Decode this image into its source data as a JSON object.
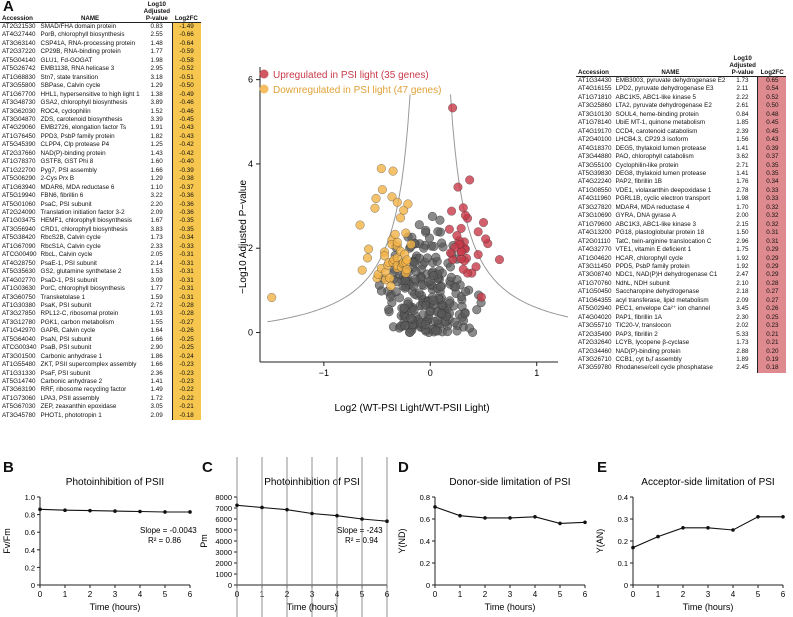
{
  "panel_labels": {
    "a": "A",
    "b": "B",
    "c": "C",
    "d": "D",
    "e": "E"
  },
  "left_table": {
    "headers": {
      "accession": "Accession",
      "name": "NAME",
      "pvalue_l1": "Log10",
      "pvalue_l2": "Adjusted",
      "pvalue_l3": "P-value",
      "fc": "Log2FC"
    },
    "fc_color": "#f6c64e",
    "rows": [
      [
        "AT2G21530",
        "SMAD/FHA domain protein",
        "0.83",
        "-1.49"
      ],
      [
        "AT4G27440",
        "PorB, chlorophyll biosynthesis",
        "2.55",
        "-0.66"
      ],
      [
        "AT3G63140",
        "CSP41A, RNA-processing protein",
        "1.48",
        "-0.64"
      ],
      [
        "AT2G37220",
        "CP29B, RNA-binding protein",
        "1.77",
        "-0.59"
      ],
      [
        "AT5G04140",
        "GLU1, Fd-GOGAT",
        "1.98",
        "-0.58"
      ],
      [
        "AT5G26742",
        "EMB1138, RNA helicase 3",
        "2.95",
        "-0.52"
      ],
      [
        "AT1G68830",
        "Stn7, state transition",
        "3.18",
        "-0.51"
      ],
      [
        "AT3G55800",
        "SBPase, Calvin cycle",
        "1.29",
        "-0.50"
      ],
      [
        "AT1G67700",
        "HHL1, hypersensitive to high light 1",
        "1.38",
        "-0.49"
      ],
      [
        "AT3G48730",
        "GSA2, chlorophyll biosynthesis",
        "3.89",
        "-0.46"
      ],
      [
        "AT3G62030",
        "ROC4, cyclophilin",
        "1.52",
        "-0.46"
      ],
      [
        "AT3G04870",
        "ZDS, carotenoid biosynthesis",
        "3.39",
        "-0.45"
      ],
      [
        "AT4G29060",
        "EMB2726, elongation factor Ts",
        "1.91",
        "-0.43"
      ],
      [
        "AT1G76450",
        "PPD3, PsbP family protein",
        "1.82",
        "-0.43"
      ],
      [
        "AT5G45390",
        "CLPP4, Clp protease P4",
        "1.25",
        "-0.42"
      ],
      [
        "AT2G37660",
        "NAD(P)-binding protein",
        "1.43",
        "-0.42"
      ],
      [
        "AT1G78370",
        "GSTF8, GST Phi 8",
        "1.60",
        "-0.40"
      ],
      [
        "AT1G22700",
        "Pyg7, PSI assembly",
        "1.66",
        "-0.39"
      ],
      [
        "AT5G06290",
        "2-Cys Prx B",
        "1.29",
        "-0.38"
      ],
      [
        "AT1G63940",
        "MDAR6, MDA reductase 6",
        "1.10",
        "-0.37"
      ],
      [
        "AT5G19940",
        "FBN6, fibrillin 6",
        "3.22",
        "-0.36"
      ],
      [
        "AT5G01060",
        "PsaC, PSI subunit",
        "2.20",
        "-0.36"
      ],
      [
        "AT2G24090",
        "Translation initiation factor 3-2",
        "2.09",
        "-0.36"
      ],
      [
        "AT1G03475",
        "HEMF1, chlorophyll biosynthesis",
        "1.67",
        "-0.35"
      ],
      [
        "AT3G56940",
        "CRD1, chlorophyll biosynthesis",
        "3.83",
        "-0.35"
      ],
      [
        "AT5G38420",
        "RbcS2B, Calvin cycle",
        "1.73",
        "-0.34"
      ],
      [
        "AT1G67090",
        "RbcS1A, Calvin cycle",
        "2.33",
        "-0.33"
      ],
      [
        "ATCG00490",
        "RbcL, Calvin cycle",
        "2.05",
        "-0.31"
      ],
      [
        "AT4G28750",
        "PsaE-1, PSI subunit",
        "2.14",
        "-0.31"
      ],
      [
        "AT5G35630",
        "GS2, glutamine synthetase 2",
        "1.53",
        "-0.31"
      ],
      [
        "AT4G02770",
        "PsaD-1, PSI subunit",
        "3.09",
        "-0.31"
      ],
      [
        "AT1G03630",
        "PorC, chlorophyll biosynthesis",
        "1.77",
        "-0.31"
      ],
      [
        "AT3G60750",
        "Transketolase 1",
        "1.59",
        "-0.31"
      ],
      [
        "AT1G30380",
        "PsaK, PSI subunit",
        "2.72",
        "-0.28"
      ],
      [
        "AT3G27850",
        "RPL12-C, ribosomal protein",
        "1.93",
        "-0.28"
      ],
      [
        "AT3G12780",
        "PGK1, carbon metabolism",
        "1.55",
        "-0.27"
      ],
      [
        "AT1G42970",
        "GAPB, Calvin cycle",
        "1.64",
        "-0.26"
      ],
      [
        "AT5G64040",
        "PsaN, PSI subunit",
        "1.66",
        "-0.25"
      ],
      [
        "ATCG00340",
        "PsaB, PSI subunit",
        "2.90",
        "-0.25"
      ],
      [
        "AT3G01500",
        "Carbonic anhydrase 1",
        "1.86",
        "-0.24"
      ],
      [
        "AT1G55480",
        "ZKT, PSII supercomplex assembly",
        "1.66",
        "-0.23"
      ],
      [
        "AT1G31330",
        "PsaF, PSI subunit",
        "2.36",
        "-0.23"
      ],
      [
        "AT5G14740",
        "Carbonic anhydrase 2",
        "1.41",
        "-0.23"
      ],
      [
        "AT3G63190",
        "RRF, ribosome recycling factor",
        "1.49",
        "-0.22"
      ],
      [
        "AT1G73060",
        "LPA3, PSII assembly",
        "1.72",
        "-0.22"
      ],
      [
        "AT5G67030",
        "ZEP, zeaxanthin epoxidase",
        "3.05",
        "-0.21"
      ],
      [
        "AT3G45780",
        "PHOT1, phototropin 1",
        "2.09",
        "-0.18"
      ]
    ]
  },
  "right_table": {
    "headers": {
      "accession": "Accession",
      "name": "NAME",
      "pvalue_l1": "Log10",
      "pvalue_l2": "Adjusted",
      "pvalue_l3": "P-value",
      "fc": "Log2FC"
    },
    "fc_color": "#de8a8f",
    "rows": [
      [
        "AT1G34430",
        "EMB3003, pyruvate dehydrogenase E2",
        "1.73",
        "0.65"
      ],
      [
        "AT4G16155",
        "LPD2, pyruvate dehydrogenase E3",
        "2.11",
        "0.54"
      ],
      [
        "AT1G71810",
        "ABC1K5, ABC1-like kinase 5",
        "2.22",
        "0.52"
      ],
      [
        "AT3G25860",
        "LTA2, pyruvate dehydrogenase E2",
        "2.61",
        "0.50"
      ],
      [
        "AT3G10130",
        "SOUL4, heme-binding protein",
        "0.84",
        "0.48"
      ],
      [
        "AT1G78140",
        "UbiE MT-1, quinone metabolism",
        "1.85",
        "0.45"
      ],
      [
        "AT4G19170",
        "CCD4, carotenoid catabolism",
        "2.39",
        "0.45"
      ],
      [
        "AT2G40100",
        "LHCB4.3, CP29.3 isoform",
        "1.56",
        "0.43"
      ],
      [
        "AT4G18370",
        "DEG5, thylakoid lumen protease",
        "1.41",
        "0.39"
      ],
      [
        "AT3G44880",
        "PAO, chlorophyll catabolism",
        "3.62",
        "0.37"
      ],
      [
        "AT3G55100",
        "Cyclophilin-like protein",
        "2.71",
        "0.35"
      ],
      [
        "AT5G39830",
        "DEG8, thylakoid lumen protease",
        "1.41",
        "0.35"
      ],
      [
        "AT4G22240",
        "PAP2, fibrillin 1B",
        "1.76",
        "0.34"
      ],
      [
        "AT1G08550",
        "VDE1, violaxanthin deepoxidase 1",
        "2.78",
        "0.33"
      ],
      [
        "AT4G11960",
        "PGRL1B, cyclic electron transport",
        "1.98",
        "0.33"
      ],
      [
        "AT3G27820",
        "MDAR4, MDA reductase 4",
        "1.70",
        "0.32"
      ],
      [
        "AT3G10690",
        "GYRA, DNA gyrase A",
        "2.00",
        "0.32"
      ],
      [
        "AT1G79600",
        "ABC1K3, ABC1-like kinase 3",
        "2.15",
        "0.32"
      ],
      [
        "AT4G13200",
        "PG18, plastoglobular protein 18",
        "1.50",
        "0.31"
      ],
      [
        "AT2G01110",
        "TatC, twin-arginine translocation C",
        "2.96",
        "0.31"
      ],
      [
        "AT4G32770",
        "VTE1, vitamin E deficient 1",
        "1.75",
        "0.29"
      ],
      [
        "AT1G04620",
        "HCAR, chlorophyll cycle",
        "1.92",
        "0.29"
      ],
      [
        "AT3G11450",
        "PPD5, PsbP family protein",
        "1.92",
        "0.29"
      ],
      [
        "AT3G08740",
        "NDC1, NAD(P)H dehydrogenase C1",
        "2.47",
        "0.29"
      ],
      [
        "AT1G70760",
        "NdhL, NDH subunit",
        "2.10",
        "0.28"
      ],
      [
        "AT1G50450",
        "Saccharopine dehydrogenase",
        "2.18",
        "0.27"
      ],
      [
        "AT1G64355",
        "acyl transferase, lipid metabolism",
        "2.09",
        "0.27"
      ],
      [
        "AT5G02940",
        "PEC1, envelope Ca²⁺ ion channel",
        "3.45",
        "0.26"
      ],
      [
        "AT4G04020",
        "PAP1, fibrillin 1A",
        "2.30",
        "0.25"
      ],
      [
        "AT3G55710",
        "TIC20-V, translocon",
        "2.02",
        "0.23"
      ],
      [
        "AT2G35490",
        "PAP3, fibrillin 2",
        "5.33",
        "0.21"
      ],
      [
        "AT2G32640",
        "LCYB, lycopene β-cyclase",
        "1.73",
        "0.21"
      ],
      [
        "AT2G34460",
        "NAD(P)-binding protein",
        "2.88",
        "0.20"
      ],
      [
        "AT3G26710",
        "CCB1, cyt b₆f assembly",
        "1.89",
        "0.19"
      ],
      [
        "AT3G59780",
        "Rhodanese/cell cycle phosphatase",
        "2.45",
        "0.18"
      ]
    ]
  },
  "volcano": {
    "ylabel": "−Log10 Adjusted P−value",
    "xlabel": "Log2 (WT-PSI Light/WT-PSII Light)",
    "legend_up": "Upregulated in PSI light (35 genes)",
    "legend_down": "Downregulated in PSI light (47 genes)",
    "color_up": "#c83a49",
    "color_down": "#f3b347",
    "color_ns": "#5a5a5a",
    "xticks": [
      "−1",
      "0",
      "1"
    ],
    "yticks": [
      "0",
      "2",
      "4",
      "6"
    ],
    "xlim": [
      -1.6,
      1.2
    ],
    "ylim": [
      -0.7,
      6.3
    ]
  },
  "chart_data": [
    {
      "type": "line",
      "title": "Photoinhibition of PSII",
      "xlabel": "Time (hours)",
      "ylabel": "Fv/Fm",
      "x": [
        0,
        1,
        2,
        3,
        4,
        5,
        6
      ],
      "values": [
        0.86,
        0.85,
        0.845,
        0.84,
        0.835,
        0.83,
        0.83
      ],
      "ylim": [
        0,
        1.0
      ],
      "yticks": [
        "0",
        "0.2",
        "0.4",
        "0.6",
        "0.8",
        "1.0"
      ],
      "xticks": [
        "0",
        "1",
        "2",
        "3",
        "4",
        "5",
        "6"
      ],
      "slope_text": "Slope = -0.0043",
      "r2_text": "R² = 0.86"
    },
    {
      "type": "line",
      "title": "Photoinhibition of PSI",
      "xlabel": "Time (hours)",
      "ylabel": "Pm",
      "x": [
        0,
        1,
        2,
        3,
        4,
        5,
        6
      ],
      "values": [
        7250,
        7050,
        6850,
        6500,
        6300,
        6000,
        5800
      ],
      "ylim": [
        0,
        8000
      ],
      "yticks": [
        "0",
        "1000",
        "2000",
        "3000",
        "4000",
        "5000",
        "6000",
        "7000",
        "8000"
      ],
      "xticks": [
        "0",
        "1",
        "2",
        "3",
        "4",
        "5",
        "6"
      ],
      "slope_text": "Slope = -243",
      "r2_text": "R² = 0.94"
    },
    {
      "type": "line",
      "title": "Donor-side limitation of PSI",
      "xlabel": "Time (hours)",
      "ylabel": "Y(ND)",
      "x": [
        0,
        1,
        2,
        3,
        4,
        5,
        6
      ],
      "values": [
        0.71,
        0.63,
        0.61,
        0.61,
        0.62,
        0.56,
        0.57
      ],
      "ylim": [
        0,
        0.8
      ],
      "yticks": [
        "0",
        "0.2",
        "0.4",
        "0.6",
        "0.8"
      ],
      "xticks": [
        "0",
        "1",
        "2",
        "3",
        "4",
        "5",
        "6"
      ]
    },
    {
      "type": "line",
      "title": "Acceptor-side limitation of PSI",
      "xlabel": "Time (hours)",
      "ylabel": "Y(AN)",
      "x": [
        0,
        1,
        2,
        3,
        4,
        5,
        6
      ],
      "values": [
        0.17,
        0.22,
        0.26,
        0.26,
        0.25,
        0.31,
        0.31
      ],
      "ylim": [
        0,
        0.4
      ],
      "yticks": [
        "0",
        "0.1",
        "0.2",
        "0.3",
        "0.4"
      ],
      "xticks": [
        "0",
        "1",
        "2",
        "3",
        "4",
        "5",
        "6"
      ]
    }
  ]
}
